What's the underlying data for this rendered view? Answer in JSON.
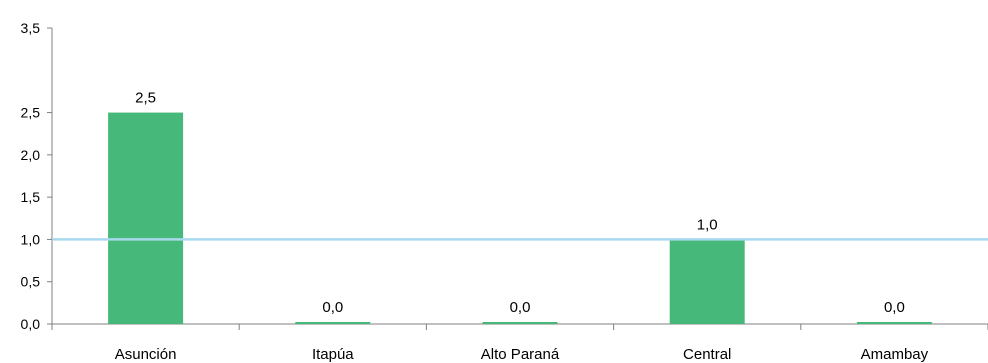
{
  "chart_data": {
    "type": "bar",
    "categories": [
      "Asunción",
      "Itapúa",
      "Alto Paraná",
      "Central",
      "Amambay"
    ],
    "values": [
      2.5,
      0.0,
      0.0,
      1.0,
      0.0
    ],
    "data_labels": [
      "2,5",
      "0,0",
      "0,0",
      "1,0",
      "0,0"
    ],
    "title": "",
    "xlabel": "",
    "ylabel": "",
    "ylim": [
      0,
      3.5
    ],
    "yticks": [
      0,
      0.5,
      1.0,
      1.5,
      2.0,
      2.5,
      3.5
    ],
    "ytick_labels": [
      "0,0",
      "0,5",
      "1,0",
      "1,5",
      "2,0",
      "2,5",
      "3,5"
    ],
    "reference_line": {
      "value": 1.0,
      "color": "#a8d8ee"
    },
    "bar_color": "#46b97a",
    "grid": false,
    "legend": "none"
  }
}
